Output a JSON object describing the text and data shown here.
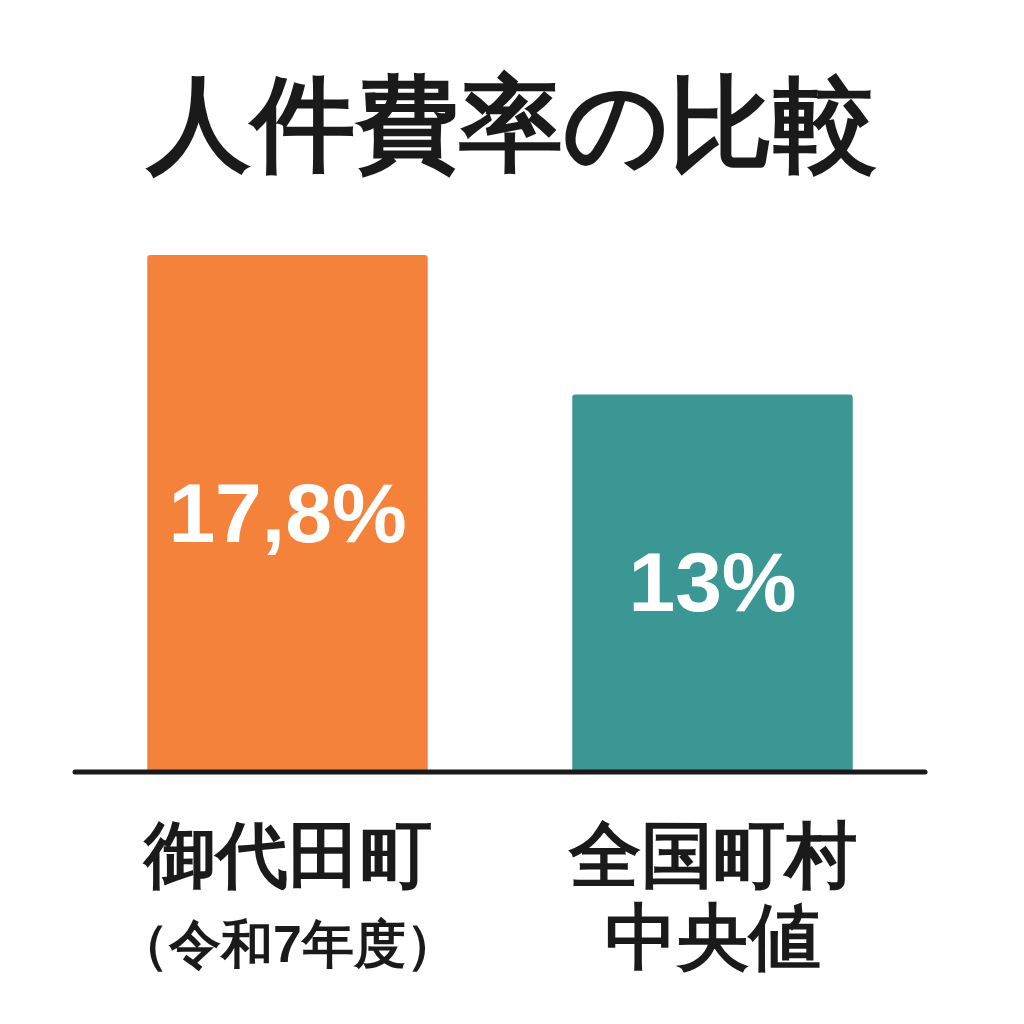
{
  "chart_data": {
    "type": "bar",
    "title": "人件費率の比較",
    "categories": [
      "御代田町（令和7年度）",
      "全国町村中央値"
    ],
    "values": [
      17.8,
      13
    ],
    "colors": [
      "#f4823a",
      "#3a9793"
    ],
    "value_labels": [
      "17,8%",
      "13%"
    ]
  }
}
